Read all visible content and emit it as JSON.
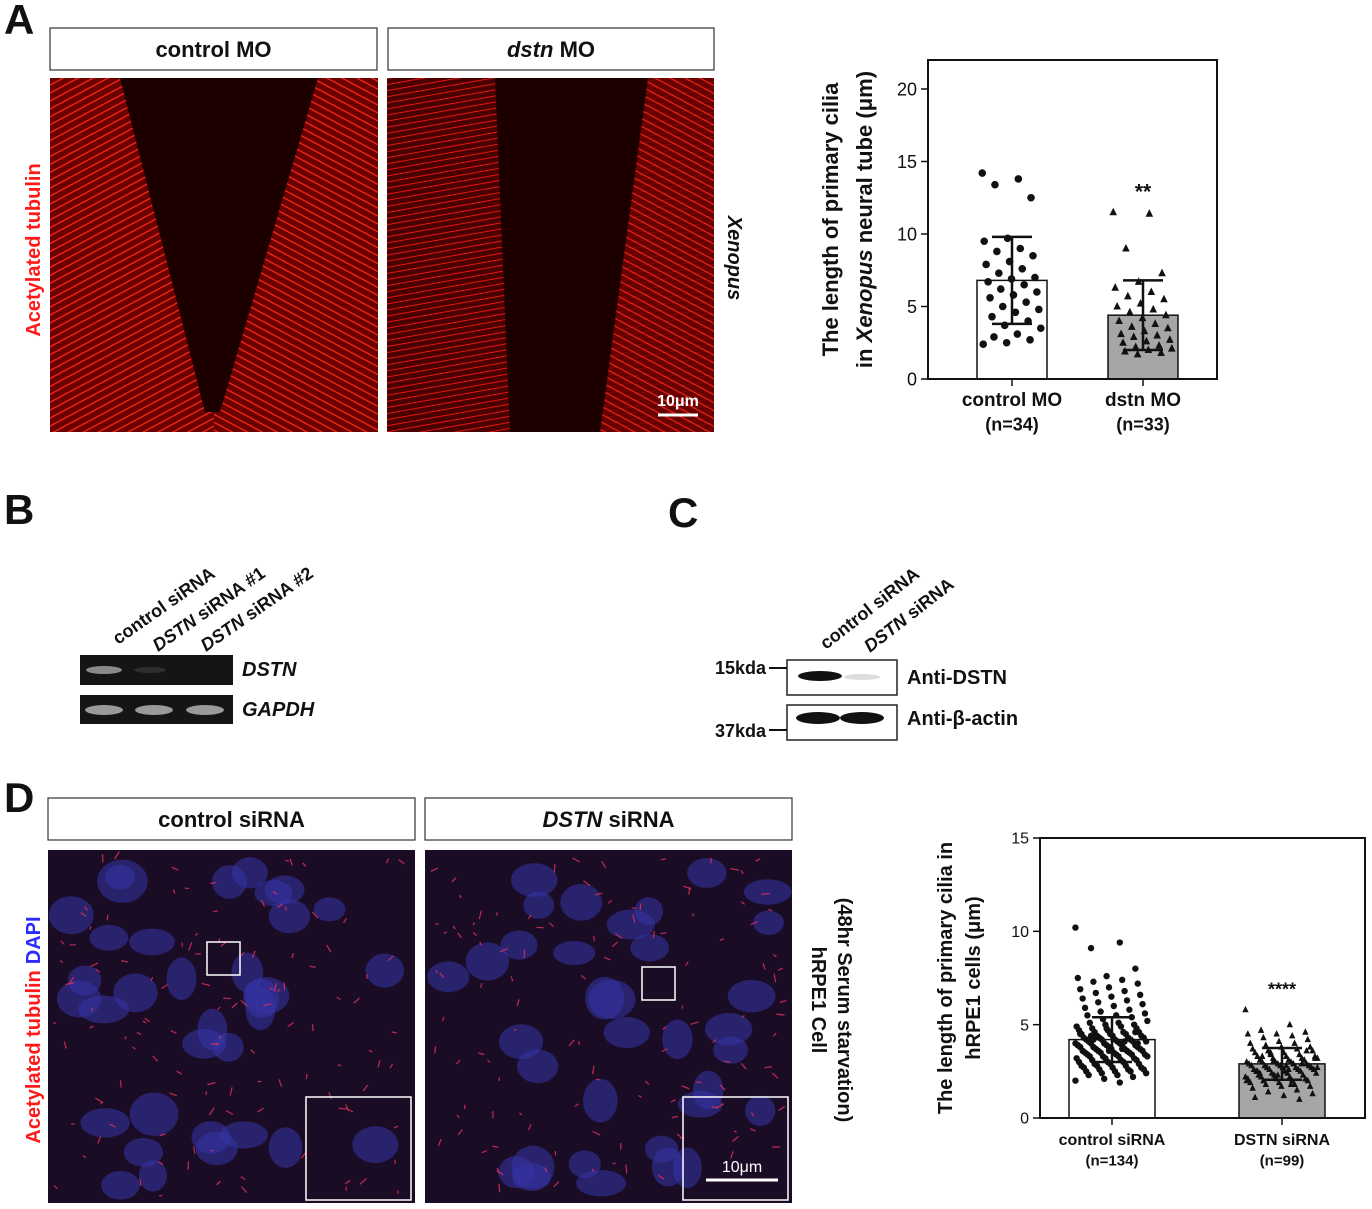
{
  "panel_labels": [
    "A",
    "B",
    "C",
    "D"
  ],
  "panel_a": {
    "headers": [
      [
        "control MO"
      ],
      [
        {
          "text": "dstn",
          "italic": true
        },
        "MO"
      ]
    ],
    "stain": "Acetylated tubulin",
    "species": "Xenopus",
    "scale_bar": "10μm"
  },
  "panel_b": {
    "lanes": [
      [
        "control siRNA"
      ],
      [
        {
          "text": "DSTN",
          "italic": true
        },
        "siRNA #1"
      ],
      [
        {
          "text": "DSTN",
          "italic": true
        },
        "siRNA #2"
      ]
    ],
    "genes": [
      "DSTN",
      "GAPDH"
    ]
  },
  "panel_c": {
    "lanes": [
      [
        "control siRNA"
      ],
      [
        {
          "text": "DSTN",
          "italic": true
        },
        "siRNA"
      ]
    ],
    "markers": [
      "15kda",
      "37kda"
    ],
    "antibodies": [
      "Anti-DSTN",
      "Anti-β-actin"
    ]
  },
  "panel_d": {
    "headers": [
      [
        "control siRNA"
      ],
      [
        {
          "text": "DSTN",
          "italic": true
        },
        "siRNA"
      ]
    ],
    "stains": [
      "Acetylated tubulin",
      "DAPI"
    ],
    "cell_line": "hRPE1 Cell",
    "condition": "(48hr Serum starvation)",
    "scale_bar": "10μm"
  },
  "chart_data": [
    {
      "type": "bar",
      "y_label": [
        [
          "The length of primary cilia"
        ],
        [
          "in",
          {
            "text": "Xenopus",
            "italic": true
          },
          "neural tube (μm)"
        ]
      ],
      "categories": [
        "control MO",
        "dstn MO"
      ],
      "sample_sizes": [
        "(n=34)",
        "(n=33)"
      ],
      "values": [
        6.8,
        4.4
      ],
      "errors": [
        3.0,
        2.4
      ],
      "points": [
        [
          14.2,
          13.8,
          13.4,
          12.5,
          9.7,
          9.5,
          9.0,
          8.8,
          8.5,
          8.1,
          7.9,
          7.6,
          7.3,
          7.0,
          6.9,
          6.7,
          6.5,
          6.2,
          6.0,
          5.8,
          5.6,
          5.3,
          5.0,
          4.8,
          4.6,
          4.3,
          4.0,
          3.7,
          3.5,
          3.1,
          2.9,
          2.7,
          2.5,
          2.4
        ],
        [
          11.5,
          11.4,
          9.0,
          7.3,
          6.7,
          6.3,
          6.0,
          5.7,
          5.5,
          5.2,
          5.0,
          4.8,
          4.6,
          4.4,
          4.2,
          4.0,
          3.8,
          3.6,
          3.5,
          3.3,
          3.1,
          3.0,
          2.9,
          2.7,
          2.6,
          2.5,
          2.3,
          2.2,
          2.1,
          2.0,
          1.9,
          1.8,
          1.7
        ]
      ],
      "significance": [
        null,
        "**"
      ],
      "bar_colors": [
        "#ffffff",
        "#a6a6a6"
      ],
      "markers": [
        "circle",
        "triangle"
      ],
      "ylim": [
        0,
        22
      ],
      "yticks": [
        0,
        5,
        10,
        15,
        20
      ]
    },
    {
      "type": "bar",
      "y_label": [
        [
          "The length of primary cilia in"
        ],
        [
          "hRPE1 cells (μm)"
        ]
      ],
      "categories": [
        "control siRNA",
        "DSTN siRNA"
      ],
      "sample_sizes": [
        "(n=134)",
        "(n=99)"
      ],
      "values": [
        4.2,
        2.9
      ],
      "errors": [
        1.2,
        0.85
      ],
      "points": [
        [
          10.2,
          9.4,
          9.1,
          8.0,
          7.6,
          7.5,
          7.4,
          7.3,
          7.2,
          7.0,
          6.9,
          6.8,
          6.7,
          6.6,
          6.5,
          6.4,
          6.3,
          6.2,
          6.1,
          6.0,
          5.9,
          5.8,
          5.7,
          5.6,
          5.5,
          5.5,
          5.4,
          5.3,
          5.2,
          5.1,
          5.1,
          5.0,
          5.0,
          4.9,
          4.9,
          4.8,
          4.8,
          4.7,
          4.7,
          4.6,
          4.6,
          4.6,
          4.5,
          4.5,
          4.5,
          4.4,
          4.4,
          4.4,
          4.3,
          4.3,
          4.3,
          4.3,
          4.2,
          4.2,
          4.2,
          4.2,
          4.1,
          4.1,
          4.1,
          4.1,
          4.0,
          4.0,
          4.0,
          4.0,
          3.9,
          3.9,
          3.9,
          3.9,
          3.8,
          3.8,
          3.8,
          3.8,
          3.7,
          3.7,
          3.7,
          3.7,
          3.6,
          3.6,
          3.6,
          3.6,
          3.5,
          3.5,
          3.5,
          3.5,
          3.4,
          3.4,
          3.4,
          3.4,
          3.3,
          3.3,
          3.3,
          3.3,
          3.2,
          3.2,
          3.2,
          3.1,
          3.1,
          3.1,
          3.0,
          3.0,
          3.0,
          2.9,
          2.9,
          2.9,
          2.8,
          2.8,
          2.8,
          2.7,
          2.7,
          2.7,
          2.6,
          2.6,
          2.6,
          2.5,
          2.5,
          2.5,
          2.4,
          2.4,
          2.3,
          2.3,
          2.2,
          2.1,
          2.0,
          1.9,
          4.4,
          4.6,
          4.8,
          3.9,
          3.7,
          4.2,
          4.0,
          3.6,
          4.5,
          4.1
        ],
        [
          5.8,
          5.0,
          4.7,
          4.6,
          4.5,
          4.5,
          4.4,
          4.3,
          4.2,
          4.1,
          4.0,
          4.0,
          3.9,
          3.8,
          3.8,
          3.7,
          3.7,
          3.6,
          3.6,
          3.5,
          3.5,
          3.4,
          3.4,
          3.3,
          3.3,
          3.3,
          3.2,
          3.2,
          3.2,
          3.1,
          3.1,
          3.1,
          3.0,
          3.0,
          3.0,
          3.0,
          2.9,
          2.9,
          2.9,
          2.9,
          2.8,
          2.8,
          2.8,
          2.8,
          2.7,
          2.7,
          2.7,
          2.7,
          2.6,
          2.6,
          2.6,
          2.6,
          2.5,
          2.5,
          2.5,
          2.4,
          2.4,
          2.4,
          2.3,
          2.3,
          2.3,
          2.2,
          2.2,
          2.2,
          2.1,
          2.1,
          2.1,
          2.0,
          2.0,
          2.0,
          1.9,
          1.9,
          1.8,
          1.8,
          1.7,
          1.7,
          1.6,
          1.5,
          1.4,
          1.3,
          1.2,
          1.1,
          1.0,
          3.5,
          3.2,
          2.8,
          2.5,
          2.9,
          3.0,
          2.7,
          2.6,
          2.4,
          3.1,
          2.2,
          2.0,
          1.8,
          3.3,
          3.6,
          2.3
        ]
      ],
      "significance": [
        null,
        "****"
      ],
      "bar_colors": [
        "#ffffff",
        "#a6a6a6"
      ],
      "markers": [
        "circle",
        "triangle"
      ],
      "ylim": [
        0,
        15
      ],
      "yticks": [
        0,
        5,
        10,
        15
      ]
    }
  ]
}
